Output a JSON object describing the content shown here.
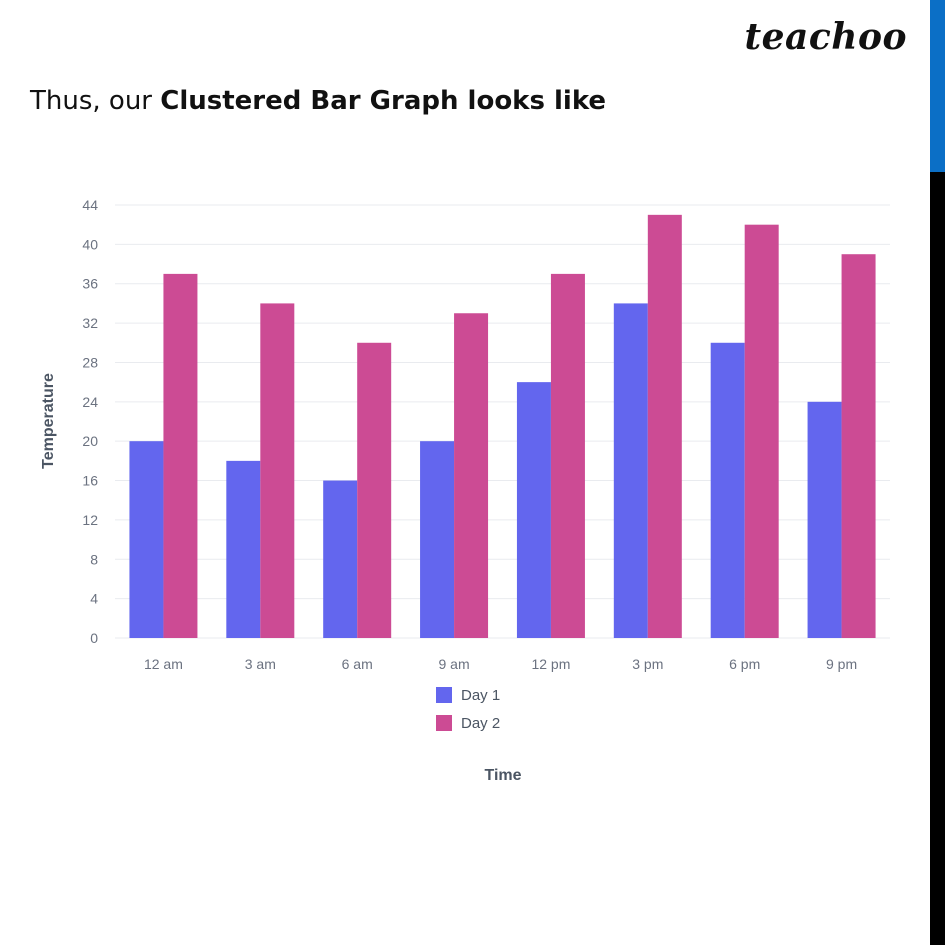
{
  "brand": {
    "name": "teachoo"
  },
  "heading": {
    "prefix": "Thus, our ",
    "bold": "Clustered Bar Graph looks like"
  },
  "colors": {
    "sidebar_accent": "#0b6fc6",
    "sidebar": "#000000"
  },
  "chart_data": {
    "type": "bar",
    "title": "",
    "xlabel": "Time",
    "ylabel": "Temperature",
    "ylim": [
      0,
      44
    ],
    "yticks": [
      0,
      4,
      8,
      12,
      16,
      20,
      24,
      28,
      32,
      36,
      40,
      44
    ],
    "grid": true,
    "legend_position": "bottom",
    "categories": [
      "12 am",
      "3 am",
      "6 am",
      "9 am",
      "12 pm",
      "3 pm",
      "6 pm",
      "9 pm"
    ],
    "series": [
      {
        "name": "Day 1",
        "color": "#6366ee",
        "values": [
          20,
          18,
          16,
          20,
          26,
          34,
          30,
          24
        ]
      },
      {
        "name": "Day 2",
        "color": "#cc4b94",
        "values": [
          37,
          34,
          30,
          33,
          37,
          43,
          42,
          39
        ]
      }
    ]
  }
}
